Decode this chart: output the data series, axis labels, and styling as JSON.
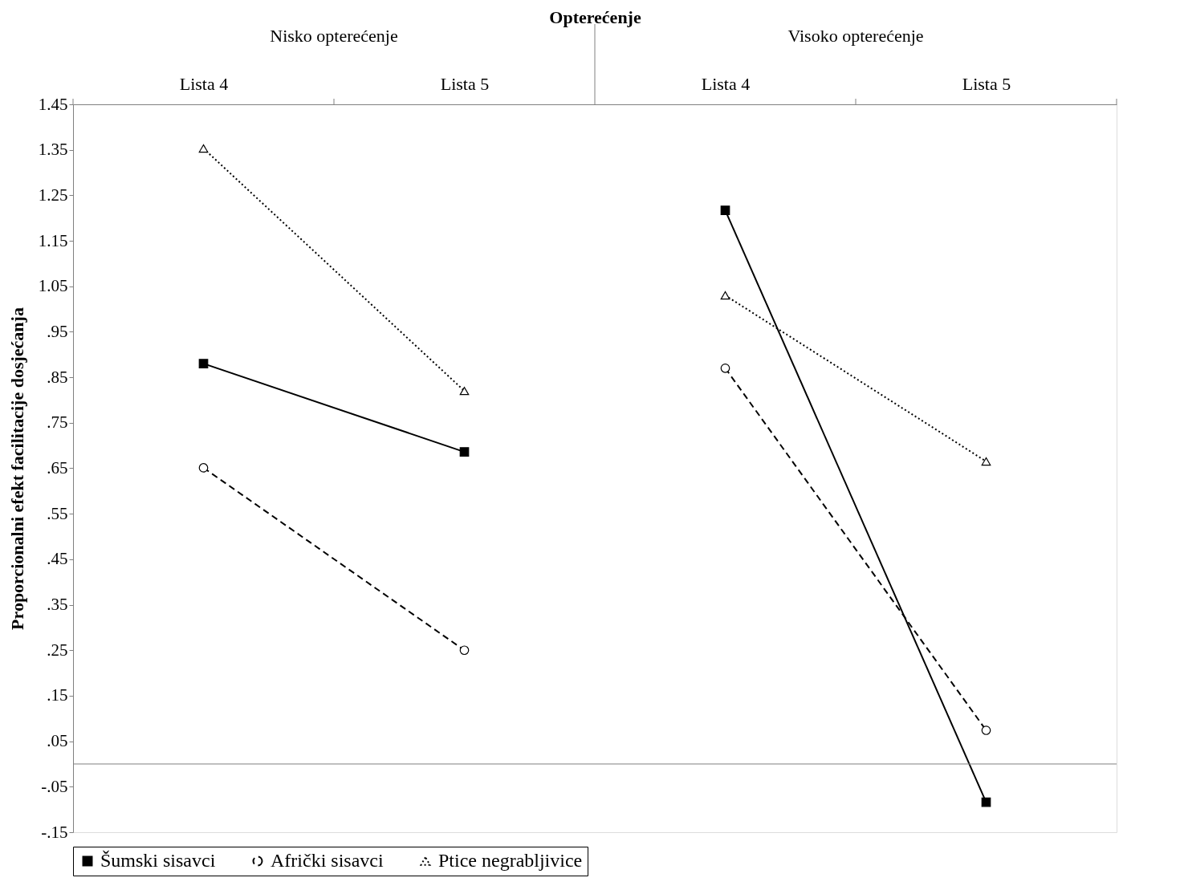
{
  "chart_data": {
    "type": "line",
    "xlabel": "Opterećenje",
    "ylabel": "Proporcionalni efekt facilitacije dosjećanja",
    "annotations": [
      "Nisko opterećenje",
      "Visoko opterećenje"
    ],
    "categories": [
      "Lista 4",
      "Lista 5",
      null,
      "Lista 4",
      "Lista 5"
    ],
    "series": [
      {
        "name": "Šumski sisavci",
        "color": "#000000",
        "marker": "square",
        "line_style": "solid",
        "values": [
          0.88,
          0.686,
          null,
          1.217,
          -0.084
        ]
      },
      {
        "name": "Afrički sisavci",
        "color": "#000000",
        "marker": "circle",
        "line_style": "dashed",
        "values": [
          0.651,
          0.25,
          null,
          0.87,
          0.074
        ]
      },
      {
        "name": "Ptice negrabljivice",
        "color": "#000000",
        "marker": "triangle",
        "line_style": "dotted",
        "values": [
          1.353,
          0.82,
          null,
          1.03,
          0.665
        ]
      }
    ],
    "ylim": [
      -0.15,
      1.45
    ],
    "yticks": [
      {
        "value": -0.15,
        "label": "-.15"
      },
      {
        "value": -0.05,
        "label": "-.05"
      },
      {
        "value": 0.05,
        "label": ".05"
      },
      {
        "value": 0.15,
        "label": ".15"
      },
      {
        "value": 0.25,
        "label": ".25"
      },
      {
        "value": 0.35,
        "label": ".35"
      },
      {
        "value": 0.45,
        "label": ".45"
      },
      {
        "value": 0.55,
        "label": ".55"
      },
      {
        "value": 0.65,
        "label": ".65"
      },
      {
        "value": 0.75,
        "label": ".75"
      },
      {
        "value": 0.85,
        "label": ".85"
      },
      {
        "value": 0.95,
        "label": ".95"
      },
      {
        "value": 1.05,
        "label": "1.05"
      },
      {
        "value": 1.15,
        "label": "1.15"
      },
      {
        "value": 1.25,
        "label": "1.25"
      },
      {
        "value": 1.35,
        "label": "1.35"
      },
      1.45
    ],
    "ref_lines": [
      {
        "axis": "y",
        "value": 0,
        "color": "#808080"
      }
    ],
    "grid": false,
    "legend": "bottom"
  }
}
